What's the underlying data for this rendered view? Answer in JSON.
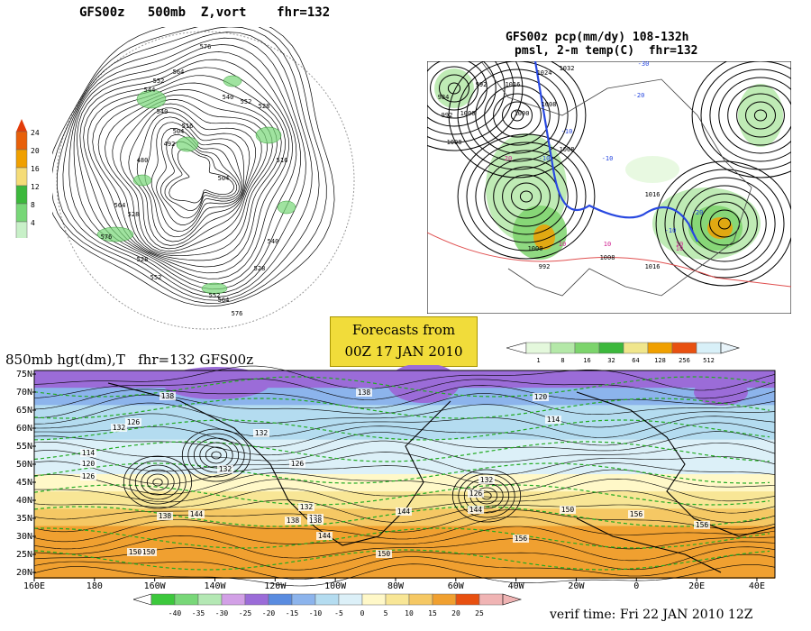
{
  "titles": {
    "top_left": "GFS00z   500mb  Z,vort    fhr=132",
    "top_right_line1": "GFS00z pcp(mm/dy) 108-132h",
    "top_right_line2": "pmsl, 2-m temp(C)  fhr=132",
    "bottom": "850mb hgt(dm),T   fhr=132 GFS00z",
    "forecast_line1": "Forecasts from",
    "forecast_line2": "00Z 17 JAN 2010",
    "verif": "verif time: Fri 22 JAN 2010 12Z"
  },
  "vort_legend": {
    "labels": [
      "24",
      "20",
      "16",
      "12",
      "8",
      "4"
    ],
    "colors": [
      "#e8600a",
      "#f0a000",
      "#f5dc78",
      "#3cb83c",
      "#78d778",
      "#c8f0c8"
    ]
  },
  "pcp_legend": {
    "labels": [
      "1",
      "8",
      "16",
      "32",
      "64",
      "128",
      "256",
      "512"
    ],
    "colors": [
      "#e4f8dc",
      "#b4e8a8",
      "#7cd46c",
      "#3cb83c",
      "#f0e68c",
      "#f0a000",
      "#e85010",
      "#d8f0f8"
    ]
  },
  "temp_legend": {
    "labels": [
      "-40",
      "-35",
      "-30",
      "-25",
      "-20",
      "-15",
      "-10",
      "-5",
      "0",
      "5",
      "10",
      "15",
      "20",
      "25"
    ],
    "colors": [
      "#3cc83c",
      "#78d778",
      "#b4e8b4",
      "#d2a0e6",
      "#9b6cd8",
      "#5a8ce0",
      "#8cb4ec",
      "#b4dcf0",
      "#dcf0f8",
      "#fff8c8",
      "#f8e696",
      "#f5c864",
      "#f0a030",
      "#e85010",
      "#f0b4b4"
    ]
  },
  "polar_labels": [
    "576",
    "564",
    "552",
    "544",
    "540",
    "516",
    "504",
    "492",
    "480",
    "528",
    "576",
    "564",
    "552",
    "540",
    "528",
    "516",
    "504",
    "528",
    "552",
    "564",
    "576",
    "528",
    "540",
    "552"
  ],
  "pmsl_labels": [
    "984",
    "992",
    "1000",
    "1008",
    "1016",
    "1024",
    "1032",
    "992",
    "1000",
    "1008",
    "1008",
    "1016",
    "1000",
    "992",
    "1008",
    "1016",
    "-30",
    "-20",
    "-10",
    "-10",
    "-20",
    "-10",
    "10",
    "10",
    "20",
    "10",
    "10",
    "-10"
  ],
  "map850": {
    "lat_labels": [
      "75N",
      "70N",
      "65N",
      "60N",
      "55N",
      "50N",
      "45N",
      "40N",
      "35N",
      "30N",
      "25N",
      "20N"
    ],
    "lon_labels": [
      "160E",
      "180",
      "160W",
      "140W",
      "120W",
      "100W",
      "80W",
      "60W",
      "40W",
      "20W",
      "0",
      "20E",
      "40E"
    ],
    "contour_labels": [
      "138",
      "138",
      "132",
      "126",
      "132",
      "114",
      "120",
      "126",
      "132",
      "138",
      "144",
      "150",
      "126",
      "132",
      "138",
      "144",
      "138",
      "120",
      "114",
      "132",
      "144",
      "150",
      "156",
      "126",
      "144",
      "150",
      "156",
      "138",
      "156",
      "150"
    ]
  }
}
